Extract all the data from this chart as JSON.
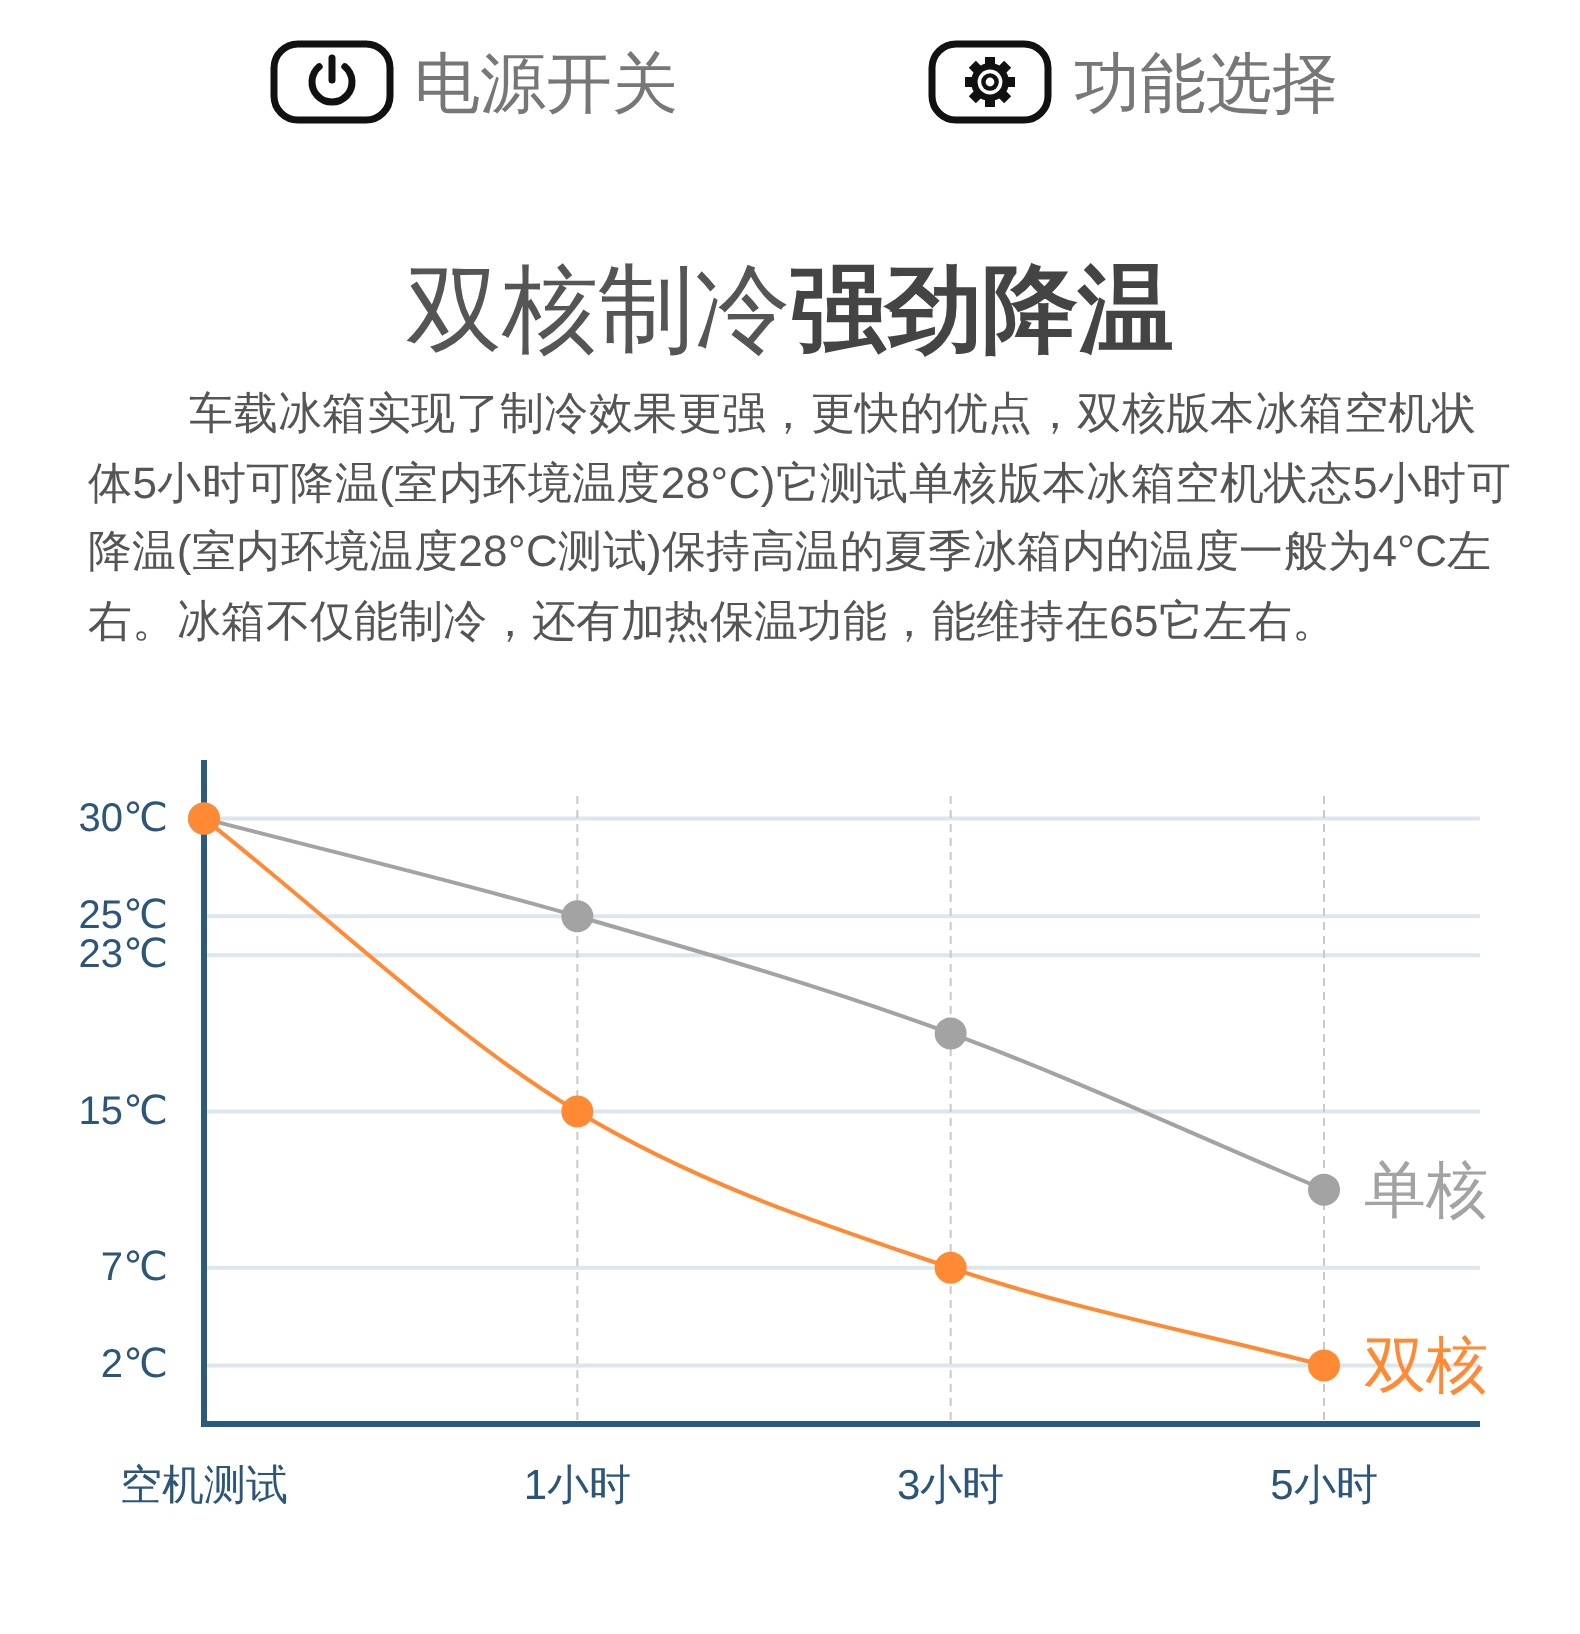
{
  "chart_data": {
    "type": "line",
    "title": "双核制冷强劲降温",
    "subtitle": "车载冰箱实现了制冷效果更强，更快的优点，双核版本冰箱空机状体5小时可降温(室内环境温度28°C)它测试单核版本冰箱空机状态5小时可降温(室内环境温度28°C测试)保持高温的夏季冰箱内的温度一般为4°C左右。冰箱不仅能制冷，还有加热保温功能，能维持在65它左右。",
    "annotations": [
      "电源开关",
      "功能选择"
    ],
    "categories": [
      "空机测试",
      "1小时",
      "3小时",
      "5小时"
    ],
    "series": [
      {
        "name": "单核",
        "color": "#a3a3a3",
        "values": [
          30,
          25,
          19,
          11
        ]
      },
      {
        "name": "双核",
        "color": "#ff8a33",
        "values": [
          30,
          15,
          7,
          2
        ]
      }
    ],
    "ylim": [
      -1,
      33
    ],
    "yticks": [
      {
        "value": 30,
        "label": "30℃"
      },
      {
        "value": 25,
        "label": "25℃"
      },
      {
        "value": 23,
        "label": "23℃"
      },
      {
        "value": 15,
        "label": "15℃"
      },
      {
        "value": 7,
        "label": "7℃"
      },
      {
        "value": 2,
        "label": "2℃"
      }
    ],
    "grid": true,
    "marker": "circle"
  }
}
